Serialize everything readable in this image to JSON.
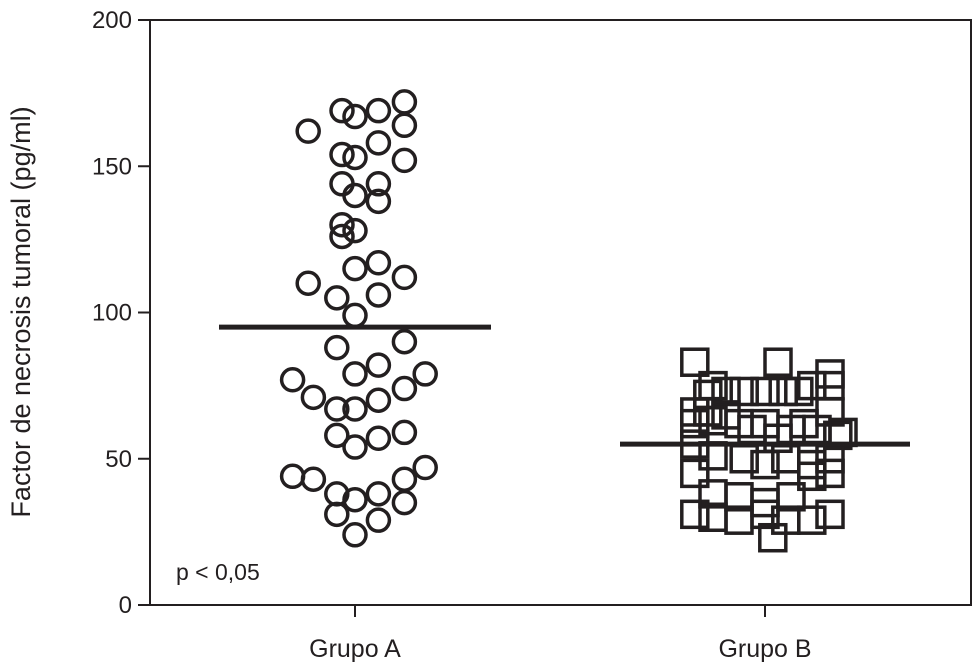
{
  "chart_data": {
    "type": "scatter",
    "ylabel": "Factor de necrosis tumoral (pg/ml)",
    "xlabel": "",
    "ylim": [
      0,
      200
    ],
    "yticks": [
      0,
      50,
      100,
      150,
      200
    ],
    "categories": [
      "Grupo A",
      "Grupo B"
    ],
    "annotation": "p < 0,05",
    "colors": {
      "ink": "#231f20",
      "background": "#ffffff"
    },
    "series": [
      {
        "category": "Grupo A",
        "marker": "circle",
        "mean": 95,
        "points": [
          [
            -0.18,
            162
          ],
          [
            -0.05,
            169
          ],
          [
            0.0,
            167
          ],
          [
            0.09,
            169
          ],
          [
            0.19,
            172
          ],
          [
            -0.05,
            154
          ],
          [
            0.0,
            153
          ],
          [
            0.09,
            158
          ],
          [
            0.19,
            164
          ],
          [
            0.19,
            152
          ],
          [
            -0.05,
            144
          ],
          [
            0.0,
            140
          ],
          [
            0.09,
            144
          ],
          [
            0.09,
            138
          ],
          [
            -0.05,
            130
          ],
          [
            0.0,
            128
          ],
          [
            -0.05,
            126
          ],
          [
            -0.18,
            110
          ],
          [
            -0.07,
            105
          ],
          [
            0.0,
            115
          ],
          [
            0.09,
            117
          ],
          [
            0.09,
            106
          ],
          [
            0.19,
            112
          ],
          [
            0.0,
            99
          ],
          [
            -0.07,
            88
          ],
          [
            0.19,
            90
          ],
          [
            -0.24,
            77
          ],
          [
            -0.16,
            71
          ],
          [
            -0.07,
            67
          ],
          [
            0.0,
            79
          ],
          [
            0.0,
            67
          ],
          [
            0.09,
            82
          ],
          [
            0.09,
            70
          ],
          [
            0.19,
            74
          ],
          [
            0.27,
            79
          ],
          [
            -0.07,
            58
          ],
          [
            0.0,
            54
          ],
          [
            0.09,
            57
          ],
          [
            0.19,
            59
          ],
          [
            -0.24,
            44
          ],
          [
            -0.16,
            43
          ],
          [
            -0.07,
            38
          ],
          [
            0.0,
            36
          ],
          [
            0.09,
            38
          ],
          [
            0.19,
            43
          ],
          [
            0.27,
            47
          ],
          [
            0.19,
            35
          ],
          [
            -0.07,
            31
          ],
          [
            0.09,
            29
          ],
          [
            0.0,
            24
          ]
        ]
      },
      {
        "category": "Grupo B",
        "marker": "square",
        "mean": 55,
        "points": [
          [
            -0.27,
            83
          ],
          [
            -0.2,
            75
          ],
          [
            -0.22,
            72
          ],
          [
            -0.15,
            73
          ],
          [
            -0.08,
            73
          ],
          [
            0.05,
            83
          ],
          [
            0.0,
            73
          ],
          [
            0.07,
            73
          ],
          [
            0.13,
            73
          ],
          [
            0.18,
            75
          ],
          [
            0.25,
            79
          ],
          [
            0.25,
            75
          ],
          [
            -0.27,
            66
          ],
          [
            -0.27,
            62
          ],
          [
            -0.22,
            66
          ],
          [
            -0.2,
            63
          ],
          [
            -0.15,
            65
          ],
          [
            -0.1,
            62
          ],
          [
            -0.05,
            60
          ],
          [
            0.0,
            62
          ],
          [
            0.05,
            57
          ],
          [
            0.1,
            60
          ],
          [
            0.15,
            62
          ],
          [
            0.2,
            60
          ],
          [
            0.25,
            66
          ],
          [
            0.28,
            58
          ],
          [
            0.3,
            59
          ],
          [
            -0.27,
            55
          ],
          [
            -0.27,
            45
          ],
          [
            -0.2,
            51
          ],
          [
            -0.08,
            50
          ],
          [
            0.0,
            48
          ],
          [
            0.08,
            50
          ],
          [
            0.18,
            48
          ],
          [
            0.25,
            50
          ],
          [
            0.25,
            45
          ],
          [
            0.18,
            44
          ],
          [
            -0.27,
            31
          ],
          [
            -0.2,
            30
          ],
          [
            -0.2,
            38
          ],
          [
            -0.1,
            37
          ],
          [
            -0.1,
            29
          ],
          [
            0.0,
            35
          ],
          [
            0.0,
            31
          ],
          [
            0.03,
            23
          ],
          [
            0.08,
            29
          ],
          [
            0.1,
            37
          ],
          [
            0.18,
            29
          ],
          [
            0.25,
            31
          ]
        ]
      }
    ]
  }
}
